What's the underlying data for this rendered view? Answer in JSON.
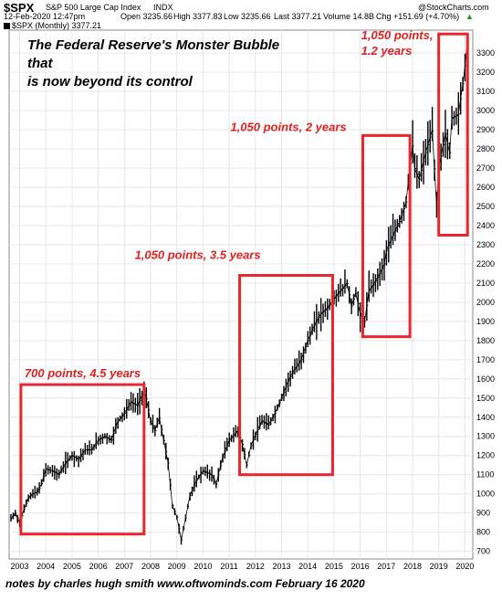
{
  "header": {
    "symbol": "$SPX",
    "name": "S&P 500 Large Cap Index",
    "exchange": "INDX",
    "watermark": "@StockCharts.com",
    "date": "12-Feb-2020 12:47pm",
    "open": "Open 3235.66",
    "high": "High 3377.83",
    "low": "Low 3235.66",
    "last": "Last 3377.21",
    "volume": "Volume 14.8B",
    "change": "Chg +151.69 (+4.70%)",
    "change_arrow": "▲",
    "series_label": "$SPX (Monthly) 3377.21"
  },
  "headline": {
    "line1": "The Federal Reserve's Monster Bubble that",
    "line2": "is now beyond its control"
  },
  "footer": "notes by charles hugh smith  www.oftwominds.com  February 16 2020",
  "colors": {
    "box": "#e8262b",
    "annotation": "#e02020",
    "candles": "#000000",
    "grid": "#e6e6e6"
  },
  "chart_data": {
    "type": "line",
    "title": "",
    "xlabel": "",
    "ylabel": "",
    "x_ticks": [
      "2003",
      "2004",
      "2005",
      "2006",
      "2007",
      "2008",
      "2009",
      "2010",
      "2011",
      "2012",
      "2013",
      "2014",
      "2015",
      "2016",
      "2017",
      "2018",
      "2019",
      "2020"
    ],
    "y_ticks": [
      700,
      800,
      900,
      1000,
      1100,
      1200,
      1300,
      1400,
      1500,
      1600,
      1700,
      1800,
      1900,
      2000,
      2100,
      2200,
      2300,
      2400,
      2500,
      2600,
      2700,
      2800,
      2900,
      3000,
      3100,
      3200,
      3300
    ],
    "ylim": [
      660,
      3420
    ],
    "xlim": [
      2002.6,
      2020.3
    ],
    "series": [
      {
        "x": [
          2002.67,
          2002.83,
          2003.0,
          2003.17,
          2003.33,
          2003.5,
          2003.67,
          2003.83,
          2004.0,
          2004.25,
          2004.5,
          2004.75,
          2005.0,
          2005.25,
          2005.5,
          2005.75,
          2006.0,
          2006.25,
          2006.5,
          2006.75,
          2007.0,
          2007.25,
          2007.5,
          2007.75,
          2007.83,
          2008.0,
          2008.17,
          2008.33,
          2008.5,
          2008.67,
          2008.83,
          2009.0,
          2009.17,
          2009.33,
          2009.5,
          2009.75,
          2010.0,
          2010.33,
          2010.5,
          2010.75,
          2011.0,
          2011.33,
          2011.5,
          2011.67,
          2011.83,
          2012.0,
          2012.25,
          2012.5,
          2012.75,
          2013.0,
          2013.25,
          2013.5,
          2013.75,
          2014.0,
          2014.25,
          2014.5,
          2014.75,
          2015.0,
          2015.25,
          2015.5,
          2015.67,
          2015.83,
          2016.0,
          2016.17,
          2016.33,
          2016.5,
          2016.75,
          2016.92,
          2017.0,
          2017.25,
          2017.5,
          2017.75,
          2018.0,
          2018.08,
          2018.25,
          2018.5,
          2018.75,
          2018.92,
          2019.0,
          2019.25,
          2019.42,
          2019.5,
          2019.75,
          2019.92,
          2020.0,
          2020.1
        ],
        "values": [
          870,
          900,
          850,
          920,
          980,
          1000,
          1010,
          1050,
          1130,
          1120,
          1100,
          1160,
          1200,
          1180,
          1230,
          1230,
          1280,
          1300,
          1280,
          1380,
          1420,
          1480,
          1460,
          1540,
          1500,
          1380,
          1330,
          1400,
          1280,
          1160,
          940,
          880,
          760,
          870,
          990,
          1070,
          1120,
          1100,
          1050,
          1190,
          1280,
          1330,
          1260,
          1150,
          1250,
          1310,
          1380,
          1360,
          1420,
          1500,
          1590,
          1650,
          1700,
          1800,
          1880,
          1940,
          1970,
          2020,
          2060,
          2100,
          1980,
          2050,
          1940,
          1900,
          2060,
          2090,
          2150,
          2200,
          2270,
          2350,
          2420,
          2520,
          2820,
          2700,
          2640,
          2780,
          2900,
          2500,
          2700,
          2880,
          2780,
          2960,
          2980,
          3140,
          3230,
          3377
        ]
      }
    ],
    "annotations": [
      {
        "text": "700 points, 4.5 years",
        "x0": 2003.05,
        "x1": 2007.75,
        "y0": 790,
        "y1": 1570
      },
      {
        "text": "1,050 points, 3.5 years",
        "x0": 2011.4,
        "x1": 2014.95,
        "y0": 1100,
        "y1": 2140
      },
      {
        "text": "1,050 points, 2 years",
        "x0": 2016.1,
        "x1": 2017.9,
        "y0": 1820,
        "y1": 2870
      },
      {
        "text": "1,050 points,",
        "text2": "1.2 years",
        "x0": 2019.0,
        "x1": 2020.1,
        "y0": 2350,
        "y1": 3400
      }
    ]
  }
}
